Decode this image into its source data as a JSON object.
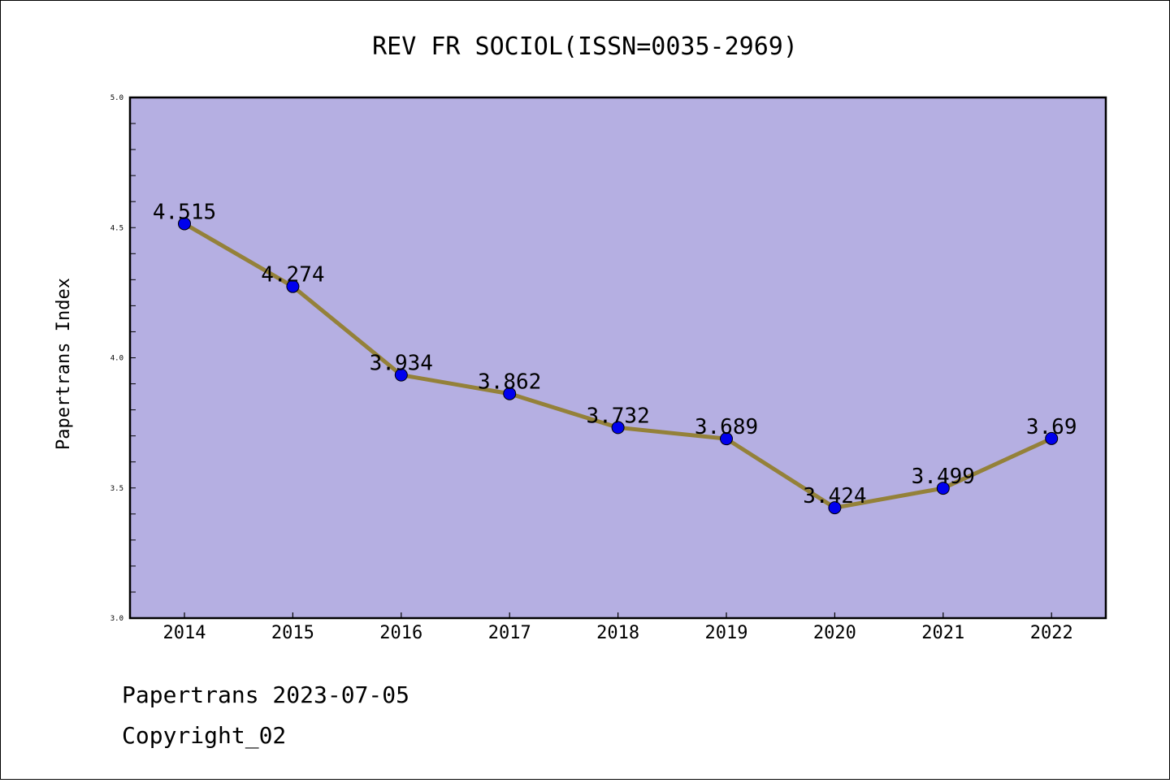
{
  "chart_data": {
    "type": "line",
    "title": "REV FR SOCIOL(ISSN=0035-2969)",
    "xlabel": "",
    "ylabel": "Papertrans Index",
    "categories": [
      "2014",
      "2015",
      "2016",
      "2017",
      "2018",
      "2019",
      "2020",
      "2021",
      "2022"
    ],
    "series": [
      {
        "values": [
          4.515,
          4.274,
          3.934,
          3.862,
          3.732,
          3.689,
          3.424,
          3.499,
          3.69
        ],
        "labels": [
          "4.515",
          "4.274",
          "3.934",
          "3.862",
          "3.732",
          "3.689",
          "3.424",
          "3.499",
          "3.69"
        ]
      }
    ],
    "ylim": [
      3.0,
      5.0
    ],
    "yticks": [
      "3.0",
      "3.5",
      "4.0",
      "4.5",
      "5.0"
    ],
    "grid": false,
    "colors": {
      "plot_background": "#b5afe2",
      "line": "#948139",
      "marker": "#0000ee"
    }
  },
  "footer": {
    "line1": "Papertrans 2023-07-05",
    "line2": "Copyright_02"
  }
}
